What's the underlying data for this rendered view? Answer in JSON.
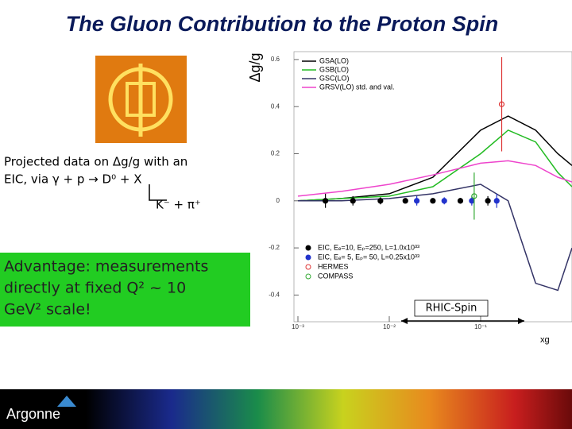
{
  "slide": {
    "title": "The Gluon Contribution to the Proton Spin",
    "text_lines": [
      "Projected data on Δg/g with an",
      "EIC, via γ + p → D⁰ + X",
      "K⁻ + π⁺"
    ],
    "box_lines": [
      "Advantage: measurements",
      "directly at fixed Q² ~ 10",
      "GeV² scale!"
    ],
    "logo": "Argonne"
  },
  "chart_data": {
    "type": "line",
    "y_label": "Δg/g",
    "x_label": "xɡ",
    "annotation": "RHIC-Spin",
    "x_log": true,
    "xlim": [
      0.001,
      1
    ],
    "xticks": [
      {
        "value": 0.001,
        "label": "10⁻³"
      },
      {
        "value": 0.01,
        "label": "10⁻²"
      },
      {
        "value": 0.1,
        "label": "10⁻¹"
      }
    ],
    "ylim": [
      -0.5,
      0.62
    ],
    "yticks": [
      -0.4,
      -0.2,
      0,
      0.2,
      0.4,
      0.6
    ],
    "series": [
      {
        "name": "GSA(LO)",
        "type": "line",
        "color": "#000000",
        "x": [
          0.001,
          0.003,
          0.01,
          0.03,
          0.1,
          0.2,
          0.4,
          0.7,
          1
        ],
        "values": [
          0.0,
          0.01,
          0.03,
          0.1,
          0.3,
          0.36,
          0.3,
          0.2,
          0.15
        ]
      },
      {
        "name": "GSB(LO)",
        "type": "line",
        "color": "#22bb22",
        "x": [
          0.001,
          0.003,
          0.01,
          0.03,
          0.1,
          0.2,
          0.4,
          0.7,
          1
        ],
        "values": [
          0.0,
          0.01,
          0.02,
          0.06,
          0.2,
          0.3,
          0.25,
          0.12,
          0.06
        ]
      },
      {
        "name": "GSC(LO)",
        "type": "line",
        "color": "#333366",
        "x": [
          0.001,
          0.003,
          0.01,
          0.03,
          0.1,
          0.2,
          0.4,
          0.7,
          1
        ],
        "values": [
          0.0,
          0.0,
          0.01,
          0.03,
          0.07,
          0.0,
          -0.35,
          -0.38,
          -0.2
        ]
      },
      {
        "name": "GRSV(LO) std. and val.",
        "type": "line",
        "color": "#ee44cc",
        "x": [
          0.001,
          0.003,
          0.01,
          0.03,
          0.1,
          0.2,
          0.4,
          0.7,
          1
        ],
        "values": [
          0.02,
          0.04,
          0.07,
          0.11,
          0.16,
          0.17,
          0.15,
          0.1,
          0.08
        ]
      },
      {
        "name": "EIC, Eₑ=10, Eₚ=250, L=1.0x10³³",
        "type": "scatter",
        "marker": "filled",
        "color": "#000000",
        "x": [
          0.002,
          0.004,
          0.008,
          0.015,
          0.03,
          0.06,
          0.12
        ],
        "values": [
          0,
          0,
          0,
          0,
          0,
          0,
          0
        ],
        "errors": [
          0.03,
          0.02,
          0.015,
          0.01,
          0.01,
          0.012,
          0.02
        ]
      },
      {
        "name": "EIC, Eₑ= 5, Eₚ= 50, L=0.25x10³³",
        "type": "scatter",
        "marker": "filled",
        "color": "#2233cc",
        "x": [
          0.02,
          0.04,
          0.08,
          0.15
        ],
        "values": [
          0,
          0,
          0,
          0
        ],
        "errors": [
          0.02,
          0.015,
          0.02,
          0.03
        ]
      },
      {
        "name": "HERMES",
        "type": "scatter",
        "marker": "open",
        "color": "#dd3333",
        "x": [
          0.17
        ],
        "values": [
          0.41
        ],
        "errors": [
          0.2
        ]
      },
      {
        "name": "COMPASS",
        "type": "scatter",
        "marker": "open",
        "color": "#33aa33",
        "x": [
          0.085
        ],
        "values": [
          0.02
        ],
        "errors": [
          0.1
        ]
      }
    ]
  }
}
